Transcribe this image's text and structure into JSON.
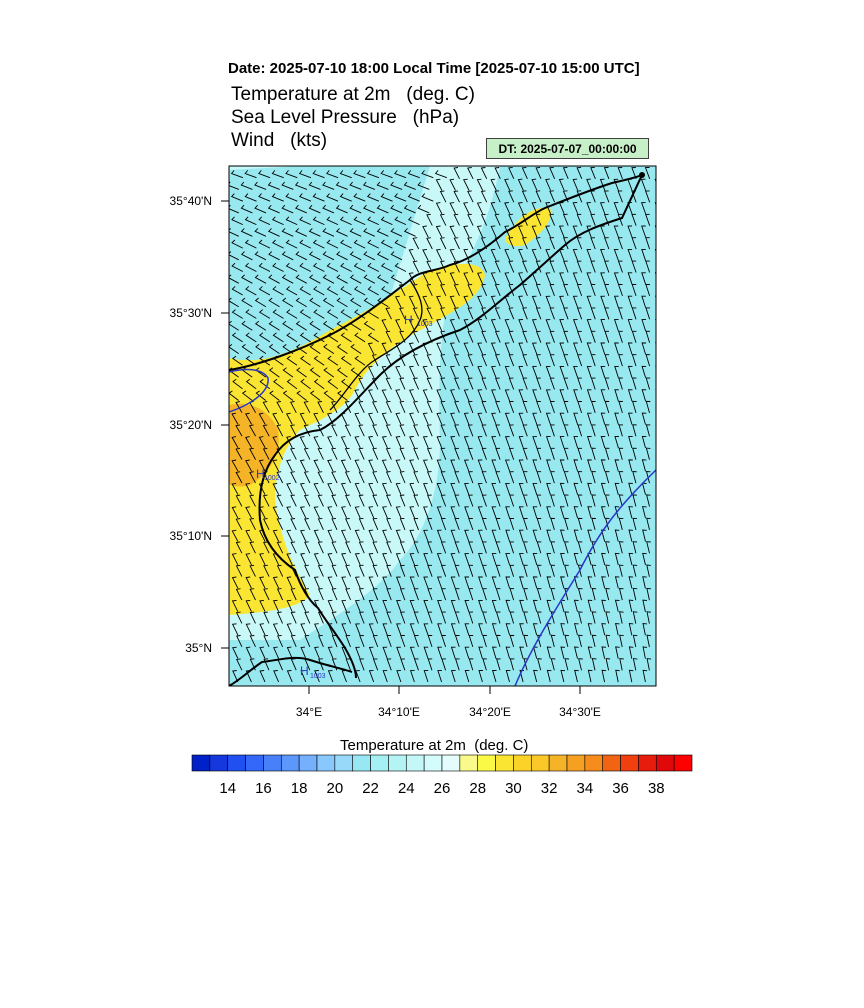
{
  "header": {
    "date_line": "Date: 2025-07-10  18:00 Local Time [2025-07-10  15:00 UTC]",
    "variables": [
      "Temperature at 2m   (deg. C)",
      "Sea Level Pressure   (hPa)",
      "Wind   (kts)"
    ],
    "dt_badge": "DT: 2025-07-07_00:00:00",
    "dt_badge_color": "#c8f0c8"
  },
  "map": {
    "lat_labels": [
      "35°40'N",
      "35°30'N",
      "35°20'N",
      "35°10'N",
      "35°N"
    ],
    "lon_labels": [
      "34°E",
      "34°10'E",
      "34°20'E",
      "34°30'E"
    ],
    "pressure_highs": [
      {
        "symbol": "H",
        "value": "1003"
      },
      {
        "symbol": "H",
        "value": "1002"
      },
      {
        "symbol": "H",
        "value": "1003"
      }
    ],
    "colors": {
      "sea_cyan": "#98e8f0",
      "light_cyan": "#c8f8f8",
      "yellow": "#fae632",
      "orange": "#f5b428",
      "coast": "#000000",
      "isobar": "#2838c8"
    }
  },
  "colorbar": {
    "title": "Temperature at 2m  (deg. C)",
    "labels": [
      "14",
      "16",
      "18",
      "20",
      "22",
      "24",
      "26",
      "28",
      "30",
      "32",
      "34",
      "36",
      "38"
    ],
    "colors": [
      "#0020c8",
      "#1438dc",
      "#2050f0",
      "#3468f8",
      "#4880fa",
      "#5c98fc",
      "#74b0fc",
      "#88c8fc",
      "#98d8f8",
      "#98e8f4",
      "#a4f0f4",
      "#b4f4f4",
      "#c4f8f8",
      "#d4fcfc",
      "#e4fcfc",
      "#fafa8c",
      "#fafa46",
      "#fae632",
      "#fad228",
      "#fac828",
      "#f5b428",
      "#f5a020",
      "#f58c1c",
      "#f06414",
      "#f04010",
      "#e81c0c",
      "#e00808",
      "#ff0000"
    ]
  }
}
